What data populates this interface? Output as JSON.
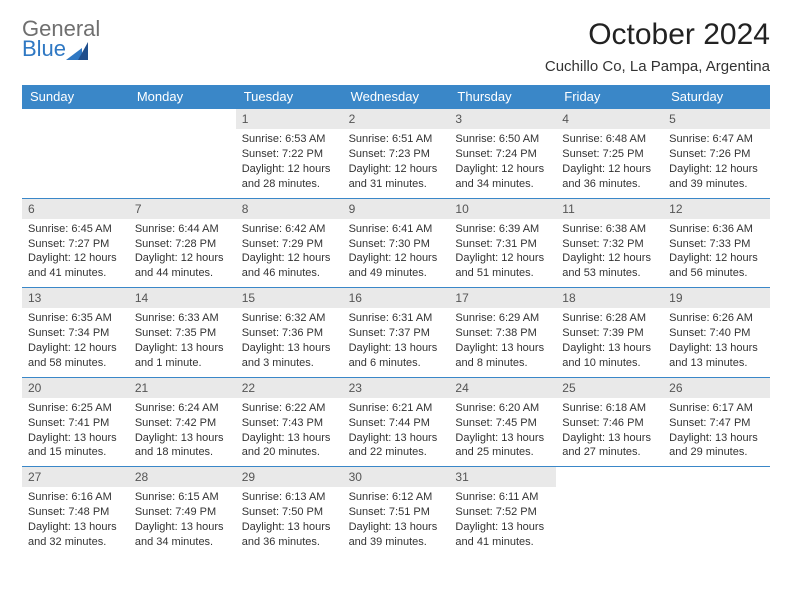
{
  "brand": {
    "part1": "General",
    "part2": "Blue"
  },
  "title": "October 2024",
  "location": "Cuchillo Co, La Pampa, Argentina",
  "colors": {
    "header_bg": "#3a87c8",
    "header_text": "#ffffff",
    "daynum_bg": "#e9e9e9",
    "row_border": "#3a87c8",
    "logo_gray": "#6f6f6f",
    "logo_blue": "#2f78c3",
    "logo_dark": "#1f4e8c"
  },
  "weekdays": [
    "Sunday",
    "Monday",
    "Tuesday",
    "Wednesday",
    "Thursday",
    "Friday",
    "Saturday"
  ],
  "weeks": [
    [
      {
        "blank": true
      },
      {
        "blank": true
      },
      {
        "n": "1",
        "sr": "Sunrise: 6:53 AM",
        "ss": "Sunset: 7:22 PM",
        "dl": "Daylight: 12 hours and 28 minutes."
      },
      {
        "n": "2",
        "sr": "Sunrise: 6:51 AM",
        "ss": "Sunset: 7:23 PM",
        "dl": "Daylight: 12 hours and 31 minutes."
      },
      {
        "n": "3",
        "sr": "Sunrise: 6:50 AM",
        "ss": "Sunset: 7:24 PM",
        "dl": "Daylight: 12 hours and 34 minutes."
      },
      {
        "n": "4",
        "sr": "Sunrise: 6:48 AM",
        "ss": "Sunset: 7:25 PM",
        "dl": "Daylight: 12 hours and 36 minutes."
      },
      {
        "n": "5",
        "sr": "Sunrise: 6:47 AM",
        "ss": "Sunset: 7:26 PM",
        "dl": "Daylight: 12 hours and 39 minutes."
      }
    ],
    [
      {
        "n": "6",
        "sr": "Sunrise: 6:45 AM",
        "ss": "Sunset: 7:27 PM",
        "dl": "Daylight: 12 hours and 41 minutes."
      },
      {
        "n": "7",
        "sr": "Sunrise: 6:44 AM",
        "ss": "Sunset: 7:28 PM",
        "dl": "Daylight: 12 hours and 44 minutes."
      },
      {
        "n": "8",
        "sr": "Sunrise: 6:42 AM",
        "ss": "Sunset: 7:29 PM",
        "dl": "Daylight: 12 hours and 46 minutes."
      },
      {
        "n": "9",
        "sr": "Sunrise: 6:41 AM",
        "ss": "Sunset: 7:30 PM",
        "dl": "Daylight: 12 hours and 49 minutes."
      },
      {
        "n": "10",
        "sr": "Sunrise: 6:39 AM",
        "ss": "Sunset: 7:31 PM",
        "dl": "Daylight: 12 hours and 51 minutes."
      },
      {
        "n": "11",
        "sr": "Sunrise: 6:38 AM",
        "ss": "Sunset: 7:32 PM",
        "dl": "Daylight: 12 hours and 53 minutes."
      },
      {
        "n": "12",
        "sr": "Sunrise: 6:36 AM",
        "ss": "Sunset: 7:33 PM",
        "dl": "Daylight: 12 hours and 56 minutes."
      }
    ],
    [
      {
        "n": "13",
        "sr": "Sunrise: 6:35 AM",
        "ss": "Sunset: 7:34 PM",
        "dl": "Daylight: 12 hours and 58 minutes."
      },
      {
        "n": "14",
        "sr": "Sunrise: 6:33 AM",
        "ss": "Sunset: 7:35 PM",
        "dl": "Daylight: 13 hours and 1 minute."
      },
      {
        "n": "15",
        "sr": "Sunrise: 6:32 AM",
        "ss": "Sunset: 7:36 PM",
        "dl": "Daylight: 13 hours and 3 minutes."
      },
      {
        "n": "16",
        "sr": "Sunrise: 6:31 AM",
        "ss": "Sunset: 7:37 PM",
        "dl": "Daylight: 13 hours and 6 minutes."
      },
      {
        "n": "17",
        "sr": "Sunrise: 6:29 AM",
        "ss": "Sunset: 7:38 PM",
        "dl": "Daylight: 13 hours and 8 minutes."
      },
      {
        "n": "18",
        "sr": "Sunrise: 6:28 AM",
        "ss": "Sunset: 7:39 PM",
        "dl": "Daylight: 13 hours and 10 minutes."
      },
      {
        "n": "19",
        "sr": "Sunrise: 6:26 AM",
        "ss": "Sunset: 7:40 PM",
        "dl": "Daylight: 13 hours and 13 minutes."
      }
    ],
    [
      {
        "n": "20",
        "sr": "Sunrise: 6:25 AM",
        "ss": "Sunset: 7:41 PM",
        "dl": "Daylight: 13 hours and 15 minutes."
      },
      {
        "n": "21",
        "sr": "Sunrise: 6:24 AM",
        "ss": "Sunset: 7:42 PM",
        "dl": "Daylight: 13 hours and 18 minutes."
      },
      {
        "n": "22",
        "sr": "Sunrise: 6:22 AM",
        "ss": "Sunset: 7:43 PM",
        "dl": "Daylight: 13 hours and 20 minutes."
      },
      {
        "n": "23",
        "sr": "Sunrise: 6:21 AM",
        "ss": "Sunset: 7:44 PM",
        "dl": "Daylight: 13 hours and 22 minutes."
      },
      {
        "n": "24",
        "sr": "Sunrise: 6:20 AM",
        "ss": "Sunset: 7:45 PM",
        "dl": "Daylight: 13 hours and 25 minutes."
      },
      {
        "n": "25",
        "sr": "Sunrise: 6:18 AM",
        "ss": "Sunset: 7:46 PM",
        "dl": "Daylight: 13 hours and 27 minutes."
      },
      {
        "n": "26",
        "sr": "Sunrise: 6:17 AM",
        "ss": "Sunset: 7:47 PM",
        "dl": "Daylight: 13 hours and 29 minutes."
      }
    ],
    [
      {
        "n": "27",
        "sr": "Sunrise: 6:16 AM",
        "ss": "Sunset: 7:48 PM",
        "dl": "Daylight: 13 hours and 32 minutes."
      },
      {
        "n": "28",
        "sr": "Sunrise: 6:15 AM",
        "ss": "Sunset: 7:49 PM",
        "dl": "Daylight: 13 hours and 34 minutes."
      },
      {
        "n": "29",
        "sr": "Sunrise: 6:13 AM",
        "ss": "Sunset: 7:50 PM",
        "dl": "Daylight: 13 hours and 36 minutes."
      },
      {
        "n": "30",
        "sr": "Sunrise: 6:12 AM",
        "ss": "Sunset: 7:51 PM",
        "dl": "Daylight: 13 hours and 39 minutes."
      },
      {
        "n": "31",
        "sr": "Sunrise: 6:11 AM",
        "ss": "Sunset: 7:52 PM",
        "dl": "Daylight: 13 hours and 41 minutes."
      },
      {
        "blank": true
      },
      {
        "blank": true
      }
    ]
  ]
}
